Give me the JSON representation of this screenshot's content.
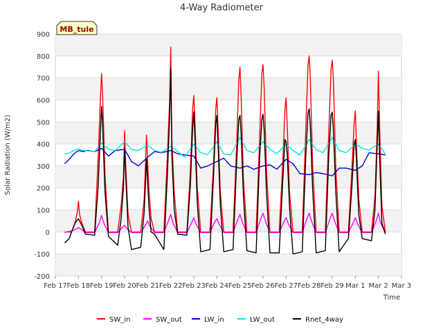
{
  "chart_data": {
    "type": "line",
    "title": "4-Way Radiometer",
    "xlabel": "Time",
    "ylabel": "Solar Radiation (W/m2)",
    "site_label": "MB_tule",
    "ylim": [
      -200,
      900
    ],
    "xlim": [
      0,
      14
    ],
    "y_ticks": [
      -200,
      -100,
      0,
      100,
      200,
      300,
      400,
      500,
      600,
      700,
      800,
      900
    ],
    "x_ticks": [
      {
        "x": 0,
        "label": "Feb 17"
      },
      {
        "x": 1,
        "label": "Feb 18"
      },
      {
        "x": 2,
        "label": "Feb 19"
      },
      {
        "x": 3,
        "label": "Feb 20"
      },
      {
        "x": 4,
        "label": "Feb 21"
      },
      {
        "x": 5,
        "label": "Feb 22"
      },
      {
        "x": 6,
        "label": "Feb 23"
      },
      {
        "x": 7,
        "label": "Feb 24"
      },
      {
        "x": 8,
        "label": "Feb 25"
      },
      {
        "x": 9,
        "label": "Feb 26"
      },
      {
        "x": 10,
        "label": "Feb 27"
      },
      {
        "x": 11,
        "label": "Feb 28"
      },
      {
        "x": 12,
        "label": "Feb 29"
      },
      {
        "x": 13,
        "label": "Mar 1"
      },
      {
        "x": 14,
        "label": "Mar 2"
      },
      {
        "x": 15,
        "label": "Mar 3"
      }
    ],
    "x_units": "days since Feb 17",
    "grid": true,
    "legend_position": "bottom",
    "series": [
      {
        "name": "SW_in",
        "color": "#ff0000",
        "x": [
          0.4,
          0.7,
          0.85,
          0.95,
          1.0,
          1.05,
          1.15,
          1.3,
          1.7,
          1.85,
          1.95,
          2.0,
          2.05,
          2.15,
          2.3,
          2.7,
          2.85,
          2.95,
          3.0,
          3.05,
          3.15,
          3.3,
          3.7,
          3.85,
          3.95,
          4.0,
          4.05,
          4.15,
          4.3,
          4.7,
          4.85,
          4.95,
          5.0,
          5.05,
          5.15,
          5.3,
          5.7,
          5.85,
          5.95,
          6.0,
          6.05,
          6.15,
          6.3,
          6.7,
          6.85,
          6.95,
          7.0,
          7.05,
          7.15,
          7.3,
          7.7,
          7.85,
          7.95,
          8.0,
          8.05,
          8.15,
          8.3,
          8.7,
          8.85,
          8.95,
          9.0,
          9.05,
          9.15,
          9.3,
          9.7,
          9.85,
          9.95,
          10.0,
          10.05,
          10.15,
          10.3,
          10.7,
          10.85,
          10.95,
          11.0,
          11.05,
          11.15,
          11.3,
          11.7,
          11.85,
          11.95,
          12.0,
          12.05,
          12.15,
          12.3,
          12.7,
          12.85,
          12.95,
          13.0,
          13.05,
          13.15,
          13.3,
          13.7,
          13.85,
          13.95,
          14.0,
          14.05,
          14.15,
          14.3
        ],
        "y": [
          0,
          0,
          40,
          90,
          140,
          80,
          40,
          0,
          0,
          330,
          600,
          720,
          620,
          260,
          0,
          0,
          120,
          250,
          460,
          300,
          80,
          0,
          0,
          150,
          440,
          320,
          200,
          60,
          0,
          0,
          340,
          590,
          840,
          420,
          180,
          0,
          0,
          280,
          560,
          620,
          500,
          200,
          0,
          0,
          300,
          560,
          610,
          480,
          180,
          0,
          0,
          380,
          690,
          750,
          620,
          240,
          0,
          0,
          420,
          720,
          760,
          650,
          280,
          0,
          0,
          300,
          560,
          610,
          480,
          180,
          0,
          0,
          460,
          760,
          800,
          700,
          300,
          0,
          0,
          460,
          740,
          780,
          690,
          300,
          0,
          0,
          280,
          500,
          550,
          400,
          150,
          0,
          0,
          160,
          480,
          730,
          500,
          120,
          0
        ]
      },
      {
        "name": "SW_out",
        "color": "#ff00ff",
        "x": [
          0.4,
          0.85,
          1.0,
          1.15,
          1.3,
          1.7,
          1.9,
          2.0,
          2.1,
          2.3,
          2.7,
          2.9,
          3.0,
          3.1,
          3.3,
          3.7,
          3.9,
          4.0,
          4.1,
          4.3,
          4.7,
          4.9,
          5.0,
          5.1,
          5.3,
          5.7,
          5.9,
          6.0,
          6.1,
          6.3,
          6.7,
          6.9,
          7.0,
          7.1,
          7.3,
          7.7,
          7.9,
          8.0,
          8.1,
          8.3,
          8.7,
          8.9,
          9.0,
          9.1,
          9.3,
          9.7,
          9.9,
          10.0,
          10.1,
          10.3,
          10.7,
          10.9,
          11.0,
          11.1,
          11.3,
          11.7,
          11.9,
          12.0,
          12.1,
          12.3,
          12.7,
          12.9,
          13.0,
          13.1,
          13.3,
          13.7,
          13.9,
          14.0,
          14.1,
          14.3
        ],
        "y": [
          -3,
          10,
          20,
          10,
          -3,
          -3,
          40,
          75,
          40,
          -3,
          -3,
          20,
          30,
          15,
          -3,
          -3,
          30,
          50,
          25,
          -3,
          -3,
          50,
          80,
          40,
          -3,
          -3,
          40,
          65,
          35,
          -3,
          -3,
          45,
          60,
          35,
          -3,
          -3,
          55,
          80,
          45,
          -3,
          -3,
          60,
          85,
          50,
          -3,
          -3,
          45,
          65,
          35,
          -3,
          -3,
          60,
          85,
          50,
          -3,
          -3,
          60,
          85,
          50,
          -3,
          -3,
          40,
          65,
          35,
          -3,
          -3,
          50,
          85,
          40,
          -3
        ]
      },
      {
        "name": "LW_in",
        "color": "#0000cc",
        "x": [
          0.4,
          0.6,
          0.8,
          1.0,
          1.2,
          1.4,
          1.7,
          2.0,
          2.3,
          2.6,
          3.0,
          3.3,
          3.6,
          4.0,
          4.3,
          4.6,
          5.0,
          5.3,
          5.6,
          6.0,
          6.3,
          6.6,
          7.0,
          7.3,
          7.6,
          8.0,
          8.3,
          8.6,
          9.0,
          9.3,
          9.6,
          10.0,
          10.3,
          10.6,
          11.0,
          11.3,
          11.6,
          12.0,
          12.3,
          12.6,
          13.0,
          13.3,
          13.6,
          14.0,
          14.3
        ],
        "y": [
          310,
          330,
          355,
          370,
          365,
          370,
          365,
          380,
          345,
          370,
          375,
          320,
          300,
          340,
          365,
          360,
          370,
          355,
          350,
          345,
          290,
          300,
          320,
          335,
          300,
          290,
          300,
          285,
          300,
          305,
          285,
          330,
          310,
          265,
          260,
          270,
          265,
          255,
          290,
          290,
          280,
          300,
          360,
          355,
          350
        ]
      },
      {
        "name": "LW_out",
        "color": "#00e5e5",
        "x": [
          0.4,
          0.6,
          0.8,
          1.0,
          1.2,
          1.4,
          1.7,
          2.0,
          2.3,
          2.6,
          3.0,
          3.3,
          3.6,
          4.0,
          4.3,
          4.6,
          5.0,
          5.3,
          5.6,
          6.0,
          6.3,
          6.6,
          7.0,
          7.3,
          7.6,
          8.0,
          8.3,
          8.6,
          9.0,
          9.3,
          9.6,
          10.0,
          10.3,
          10.6,
          11.0,
          11.3,
          11.6,
          12.0,
          12.3,
          12.6,
          13.0,
          13.3,
          13.6,
          14.0,
          14.3
        ],
        "y": [
          355,
          358,
          370,
          378,
          370,
          368,
          365,
          405,
          375,
          370,
          410,
          375,
          370,
          395,
          370,
          362,
          390,
          365,
          340,
          400,
          360,
          352,
          410,
          355,
          350,
          430,
          370,
          360,
          410,
          375,
          355,
          400,
          370,
          350,
          420,
          375,
          360,
          430,
          370,
          360,
          400,
          380,
          372,
          400,
          355
        ]
      },
      {
        "name": "Rnet_4way",
        "color": "#000000",
        "x": [
          0.4,
          0.6,
          0.85,
          1.0,
          1.15,
          1.3,
          1.7,
          1.85,
          1.95,
          2.0,
          2.05,
          2.15,
          2.3,
          2.7,
          2.85,
          2.95,
          3.0,
          3.05,
          3.15,
          3.3,
          3.7,
          3.85,
          3.95,
          4.0,
          4.05,
          4.15,
          4.3,
          4.7,
          4.85,
          4.95,
          5.0,
          5.05,
          5.15,
          5.3,
          5.7,
          5.85,
          5.95,
          6.0,
          6.05,
          6.15,
          6.3,
          6.7,
          6.85,
          6.95,
          7.0,
          7.05,
          7.15,
          7.3,
          7.7,
          7.85,
          7.95,
          8.0,
          8.05,
          8.15,
          8.3,
          8.7,
          8.85,
          8.95,
          9.0,
          9.05,
          9.15,
          9.3,
          9.7,
          9.85,
          9.95,
          10.0,
          10.05,
          10.15,
          10.3,
          10.7,
          10.85,
          10.95,
          11.0,
          11.05,
          11.15,
          11.3,
          11.7,
          11.85,
          11.95,
          12.0,
          12.05,
          12.15,
          12.3,
          12.7,
          12.85,
          12.95,
          13.0,
          13.05,
          13.15,
          13.3,
          13.7,
          13.85,
          13.95,
          14.0,
          14.05,
          14.15,
          14.3
        ],
        "y": [
          -50,
          -30,
          40,
          60,
          30,
          -10,
          -15,
          200,
          450,
          570,
          480,
          180,
          -20,
          -60,
          60,
          200,
          380,
          250,
          20,
          -80,
          -70,
          90,
          330,
          230,
          120,
          0,
          -10,
          -80,
          250,
          520,
          740,
          350,
          100,
          -10,
          -15,
          210,
          470,
          545,
          420,
          130,
          -90,
          -80,
          240,
          490,
          530,
          400,
          120,
          -90,
          -80,
          300,
          510,
          530,
          450,
          160,
          -85,
          -95,
          330,
          510,
          535,
          460,
          180,
          -95,
          -95,
          220,
          420,
          410,
          350,
          110,
          -100,
          -90,
          340,
          540,
          560,
          480,
          190,
          -95,
          -85,
          350,
          530,
          545,
          460,
          190,
          -90,
          -30,
          200,
          400,
          420,
          320,
          80,
          -30,
          -40,
          100,
          400,
          550,
          350,
          40,
          -10
        ]
      }
    ]
  }
}
